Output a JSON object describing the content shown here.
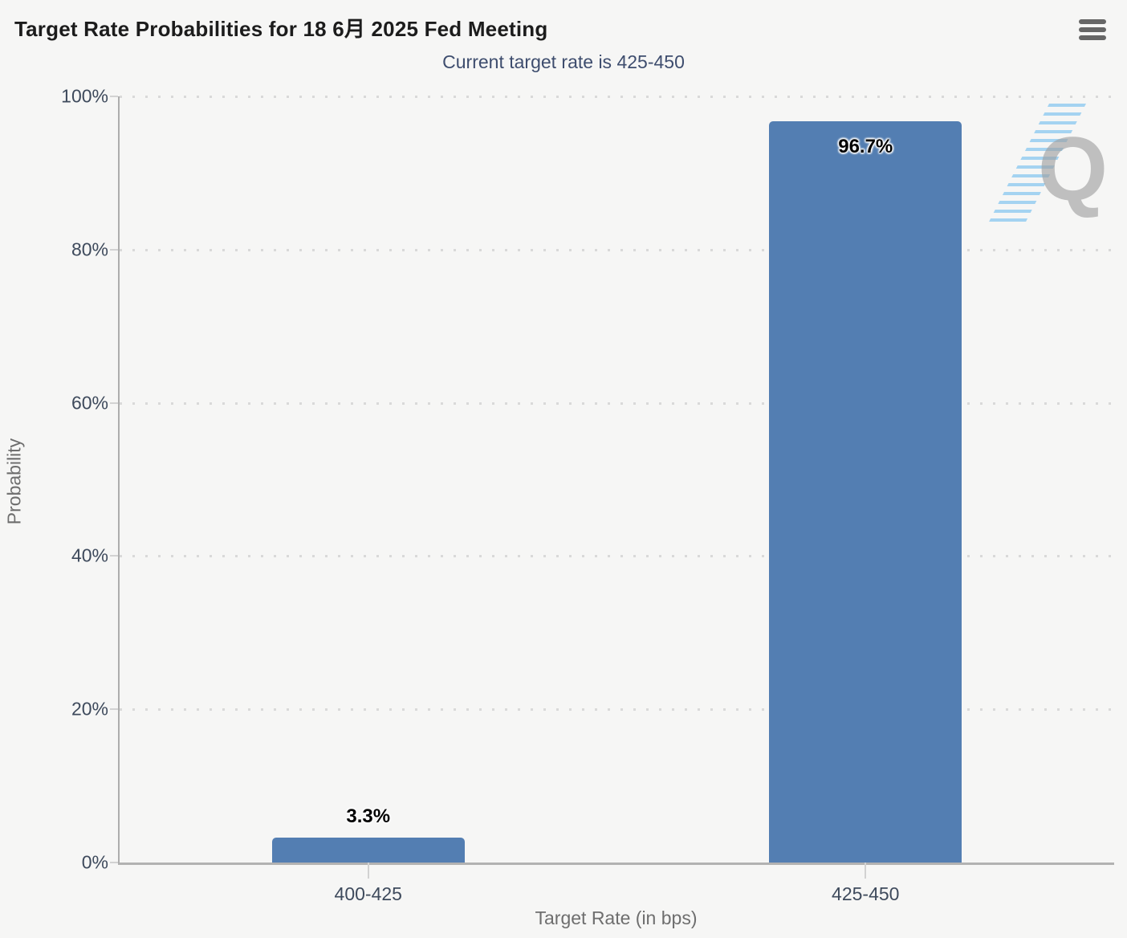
{
  "header": {
    "title": "Target Rate Probabilities for 18 6月 2025 Fed Meeting",
    "subtitle": "Current target rate is 425-450"
  },
  "chart_data": {
    "type": "bar",
    "title": "Target Rate Probabilities for 18 6月 2025 Fed Meeting",
    "subtitle": "Current target rate is 425-450",
    "categories": [
      "400-425",
      "425-450"
    ],
    "values": [
      3.3,
      96.7
    ],
    "value_labels": [
      "3.3%",
      "96.7%"
    ],
    "xlabel": "Target Rate (in bps)",
    "ylabel": "Probability",
    "ylim": [
      0,
      100
    ],
    "ytick_labels": [
      "0%",
      "20%",
      "40%",
      "60%",
      "80%",
      "100%"
    ],
    "grid": true,
    "legend_position": "none",
    "bar_color": "#537eb2"
  },
  "icons": {
    "menu": "hamburger-menu-icon",
    "watermark_letter": "Q"
  },
  "colors": {
    "background": "#f6f6f5",
    "bar": "#537eb2",
    "subtitle_text": "#3e4d6e",
    "axis_label_text": "#3e4a5c",
    "axis_title_text": "#6e6e6e",
    "gridline": "#d9d9d9",
    "axis_line": "#b2b2b2"
  }
}
